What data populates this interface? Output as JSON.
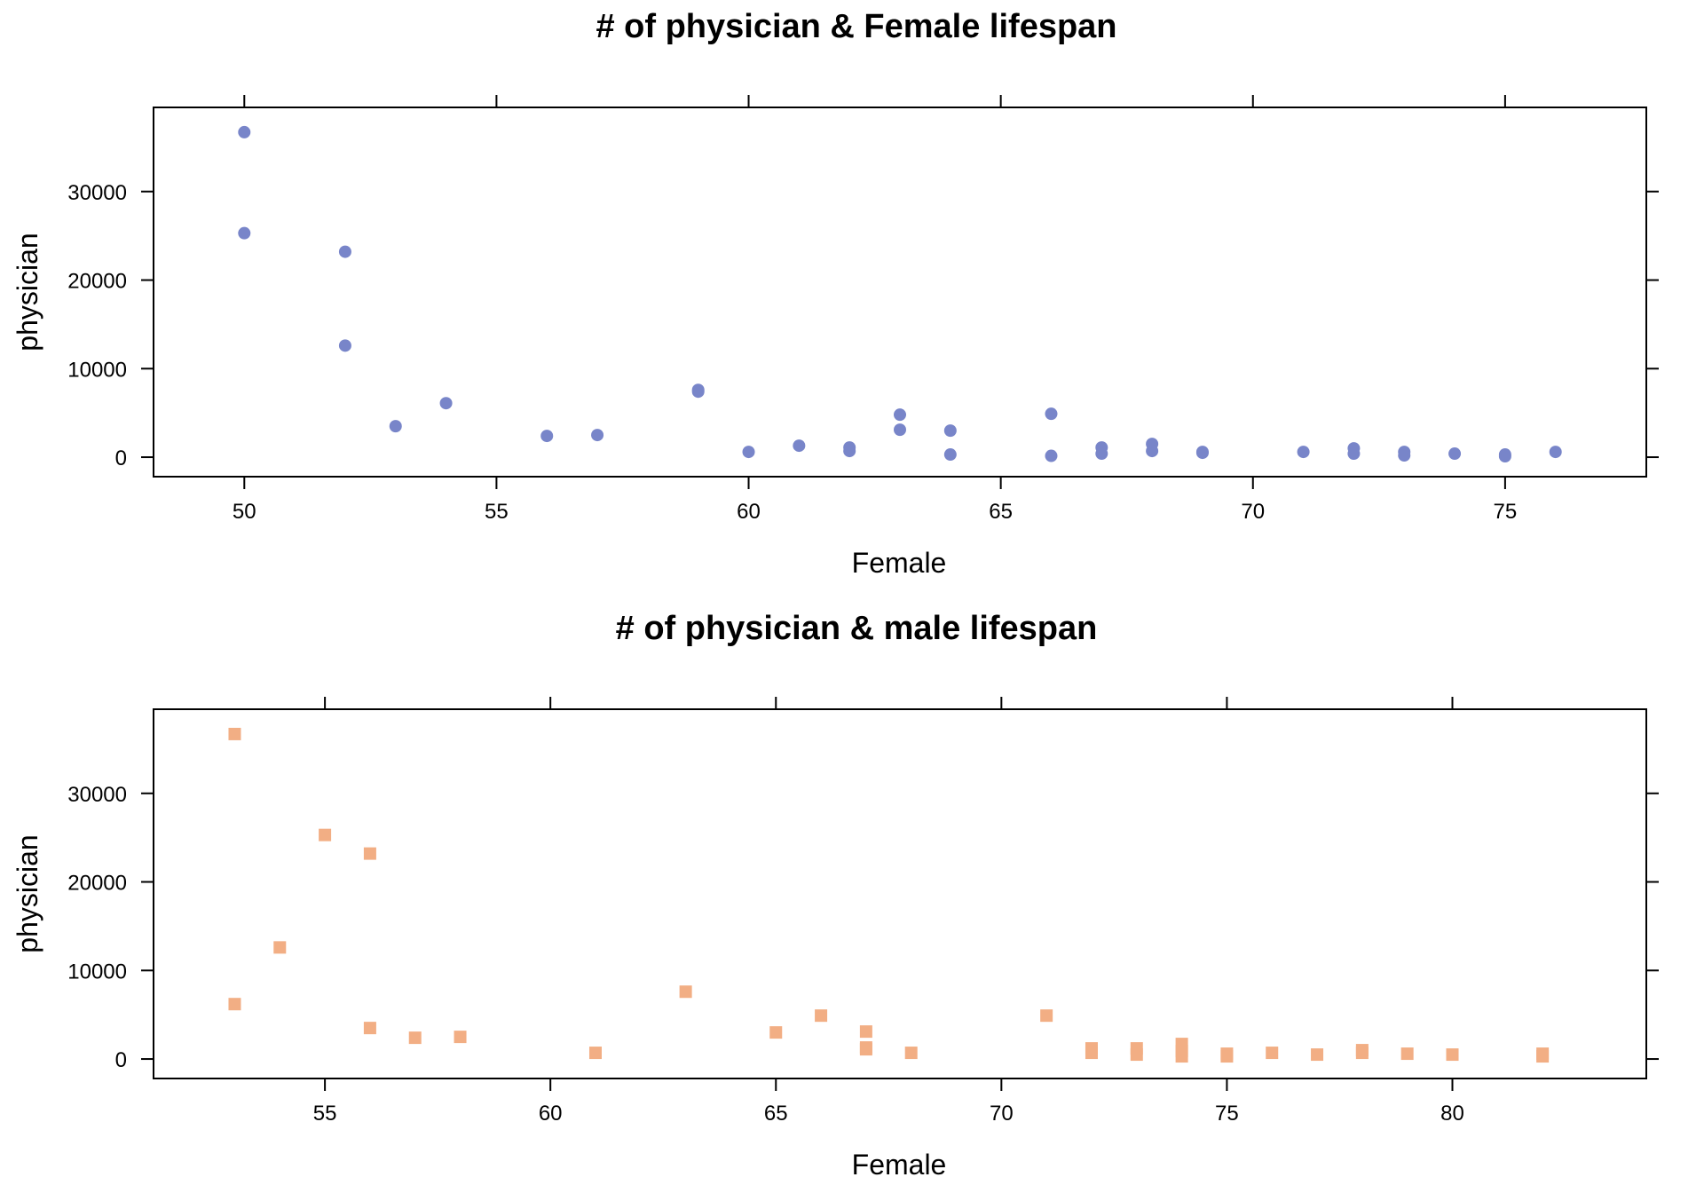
{
  "chart_data": [
    {
      "type": "scatter",
      "title": "# of physician & Female lifespan",
      "xlabel": "Female",
      "ylabel": "physician",
      "xlim": [
        48.2,
        77.8
      ],
      "ylim": [
        -2200,
        39500
      ],
      "xticks": [
        50,
        55,
        60,
        65,
        70,
        75
      ],
      "yticks": [
        0,
        10000,
        20000,
        30000
      ],
      "marker": "circle",
      "color": "#7885C9",
      "grid": false,
      "points": [
        [
          50,
          36700
        ],
        [
          50,
          25300
        ],
        [
          52,
          23200
        ],
        [
          52,
          12600
        ],
        [
          53,
          3500
        ],
        [
          54,
          6100
        ],
        [
          56,
          2400
        ],
        [
          57,
          2500
        ],
        [
          59,
          7600
        ],
        [
          59,
          7400
        ],
        [
          60,
          600
        ],
        [
          61,
          1300
        ],
        [
          62,
          1100
        ],
        [
          62,
          700
        ],
        [
          63,
          4800
        ],
        [
          63,
          3100
        ],
        [
          64,
          3000
        ],
        [
          64,
          300
        ],
        [
          66,
          4900
        ],
        [
          66,
          150
        ],
        [
          67,
          1100
        ],
        [
          67,
          400
        ],
        [
          68,
          1500
        ],
        [
          68,
          700
        ],
        [
          69,
          600
        ],
        [
          69,
          500
        ],
        [
          71,
          600
        ],
        [
          72,
          1000
        ],
        [
          72,
          400
        ],
        [
          73,
          600
        ],
        [
          73,
          200
        ],
        [
          74,
          400
        ],
        [
          75,
          300
        ],
        [
          75,
          100
        ],
        [
          76,
          600
        ]
      ]
    },
    {
      "type": "scatter",
      "title": "# of physician & male lifespan",
      "xlabel": "Female",
      "ylabel": "physician",
      "xlim": [
        51.2,
        84.3
      ],
      "ylim": [
        -2200,
        39500
      ],
      "xticks": [
        55,
        60,
        65,
        70,
        75,
        80
      ],
      "yticks": [
        0,
        10000,
        20000,
        30000
      ],
      "marker": "square",
      "color": "#F2AE84",
      "grid": false,
      "points": [
        [
          53,
          36700
        ],
        [
          53,
          6200
        ],
        [
          54,
          12600
        ],
        [
          55,
          25300
        ],
        [
          56,
          23200
        ],
        [
          56,
          3500
        ],
        [
          57,
          2400
        ],
        [
          58,
          2500
        ],
        [
          61,
          700
        ],
        [
          63,
          7600
        ],
        [
          65,
          3000
        ],
        [
          66,
          4900
        ],
        [
          67,
          3100
        ],
        [
          67,
          1300
        ],
        [
          67,
          1100
        ],
        [
          68,
          700
        ],
        [
          71,
          4900
        ],
        [
          72,
          1200
        ],
        [
          72,
          700
        ],
        [
          73,
          1200
        ],
        [
          73,
          500
        ],
        [
          74,
          1700
        ],
        [
          74,
          900
        ],
        [
          74,
          300
        ],
        [
          75,
          600
        ],
        [
          75,
          300
        ],
        [
          76,
          700
        ],
        [
          77,
          500
        ],
        [
          78,
          1000
        ],
        [
          78,
          700
        ],
        [
          79,
          600
        ],
        [
          80,
          500
        ],
        [
          82,
          600
        ],
        [
          82,
          300
        ]
      ]
    }
  ]
}
